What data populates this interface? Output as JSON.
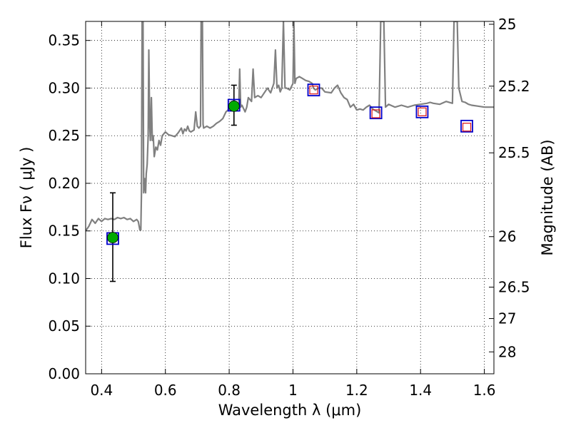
{
  "chart_data": {
    "type": "scatter",
    "xlabel": "Wavelength  λ (μm)",
    "ylabel": "Flux  Fν  ( μJy )",
    "y2label": "Magnitude (AB)",
    "xlim": [
      0.35,
      1.63
    ],
    "ylim": [
      0.0,
      0.37
    ],
    "grid": true,
    "x_ticks": [
      0.4,
      0.6,
      0.8,
      1.0,
      1.2,
      1.4,
      1.6
    ],
    "x_tick_labels": [
      "0.4",
      "0.6",
      "0.8",
      "1",
      "1.2",
      "1.4",
      "1.6"
    ],
    "y_ticks": [
      0.0,
      0.05,
      0.1,
      0.15,
      0.2,
      0.25,
      0.3,
      0.35
    ],
    "y_tick_labels": [
      "0.00",
      "0.05",
      "0.10",
      "0.15",
      "0.20",
      "0.25",
      "0.30",
      "0.35"
    ],
    "y2_ticks": [
      {
        "label": "25",
        "flux": 0.367
      },
      {
        "label": "25.2",
        "flux": 0.302
      },
      {
        "label": "25.5",
        "flux": 0.232
      },
      {
        "label": "26",
        "flux": 0.144
      },
      {
        "label": "26.5",
        "flux": 0.091
      },
      {
        "label": "27",
        "flux": 0.058
      },
      {
        "label": "28",
        "flux": 0.023
      }
    ],
    "series": [
      {
        "kind": "sed-model-line",
        "color": "#808080",
        "points": [
          [
            0.35,
            0.15
          ],
          [
            0.36,
            0.155
          ],
          [
            0.37,
            0.162
          ],
          [
            0.38,
            0.158
          ],
          [
            0.39,
            0.163
          ],
          [
            0.4,
            0.16
          ],
          [
            0.41,
            0.163
          ],
          [
            0.42,
            0.162
          ],
          [
            0.43,
            0.163
          ],
          [
            0.44,
            0.162
          ],
          [
            0.45,
            0.164
          ],
          [
            0.46,
            0.163
          ],
          [
            0.47,
            0.164
          ],
          [
            0.48,
            0.162
          ],
          [
            0.49,
            0.163
          ],
          [
            0.5,
            0.16
          ],
          [
            0.51,
            0.162
          ],
          [
            0.515,
            0.16
          ],
          [
            0.52,
            0.151
          ],
          [
            0.523,
            0.151
          ],
          [
            0.525,
            0.19
          ],
          [
            0.527,
            0.37
          ],
          [
            0.53,
            0.37
          ],
          [
            0.532,
            0.19
          ],
          [
            0.535,
            0.205
          ],
          [
            0.538,
            0.19
          ],
          [
            0.54,
            0.21
          ],
          [
            0.543,
            0.22
          ],
          [
            0.546,
            0.25
          ],
          [
            0.548,
            0.34
          ],
          [
            0.551,
            0.26
          ],
          [
            0.553,
            0.245
          ],
          [
            0.556,
            0.29
          ],
          [
            0.559,
            0.245
          ],
          [
            0.562,
            0.25
          ],
          [
            0.565,
            0.228
          ],
          [
            0.57,
            0.238
          ],
          [
            0.575,
            0.235
          ],
          [
            0.58,
            0.245
          ],
          [
            0.585,
            0.24
          ],
          [
            0.59,
            0.25
          ],
          [
            0.6,
            0.254
          ],
          [
            0.61,
            0.251
          ],
          [
            0.62,
            0.25
          ],
          [
            0.63,
            0.249
          ],
          [
            0.64,
            0.253
          ],
          [
            0.65,
            0.258
          ],
          [
            0.655,
            0.252
          ],
          [
            0.66,
            0.257
          ],
          [
            0.665,
            0.255
          ],
          [
            0.67,
            0.26
          ],
          [
            0.675,
            0.255
          ],
          [
            0.68,
            0.254
          ],
          [
            0.69,
            0.256
          ],
          [
            0.695,
            0.275
          ],
          [
            0.7,
            0.26
          ],
          [
            0.705,
            0.258
          ],
          [
            0.71,
            0.26
          ],
          [
            0.712,
            0.37
          ],
          [
            0.716,
            0.37
          ],
          [
            0.718,
            0.262
          ],
          [
            0.72,
            0.258
          ],
          [
            0.73,
            0.26
          ],
          [
            0.74,
            0.258
          ],
          [
            0.75,
            0.26
          ],
          [
            0.76,
            0.263
          ],
          [
            0.77,
            0.265
          ],
          [
            0.78,
            0.268
          ],
          [
            0.79,
            0.275
          ],
          [
            0.8,
            0.278
          ],
          [
            0.81,
            0.28
          ],
          [
            0.82,
            0.276
          ],
          [
            0.83,
            0.28
          ],
          [
            0.833,
            0.32
          ],
          [
            0.836,
            0.28
          ],
          [
            0.84,
            0.282
          ],
          [
            0.85,
            0.275
          ],
          [
            0.855,
            0.28
          ],
          [
            0.86,
            0.29
          ],
          [
            0.87,
            0.286
          ],
          [
            0.875,
            0.32
          ],
          [
            0.88,
            0.29
          ],
          [
            0.89,
            0.292
          ],
          [
            0.9,
            0.29
          ],
          [
            0.92,
            0.3
          ],
          [
            0.93,
            0.295
          ],
          [
            0.94,
            0.305
          ],
          [
            0.945,
            0.34
          ],
          [
            0.95,
            0.3
          ],
          [
            0.955,
            0.303
          ],
          [
            0.96,
            0.296
          ],
          [
            0.965,
            0.3
          ],
          [
            0.97,
            0.37
          ],
          [
            0.975,
            0.3
          ],
          [
            0.98,
            0.3
          ],
          [
            0.99,
            0.298
          ],
          [
            1.0,
            0.305
          ],
          [
            1.003,
            0.37
          ],
          [
            1.006,
            0.305
          ],
          [
            1.01,
            0.31
          ],
          [
            1.02,
            0.312
          ],
          [
            1.03,
            0.31
          ],
          [
            1.04,
            0.308
          ],
          [
            1.05,
            0.307
          ],
          [
            1.06,
            0.305
          ],
          [
            1.064,
            0.3
          ],
          [
            1.07,
            0.298
          ],
          [
            1.08,
            0.3
          ],
          [
            1.09,
            0.3
          ],
          [
            1.1,
            0.296
          ],
          [
            1.12,
            0.295
          ],
          [
            1.13,
            0.3
          ],
          [
            1.14,
            0.303
          ],
          [
            1.15,
            0.295
          ],
          [
            1.16,
            0.29
          ],
          [
            1.17,
            0.288
          ],
          [
            1.18,
            0.28
          ],
          [
            1.19,
            0.283
          ],
          [
            1.2,
            0.277
          ],
          [
            1.21,
            0.278
          ],
          [
            1.22,
            0.277
          ],
          [
            1.23,
            0.28
          ],
          [
            1.24,
            0.282
          ],
          [
            1.25,
            0.278
          ],
          [
            1.26,
            0.276
          ],
          [
            1.27,
            0.274
          ],
          [
            1.275,
            0.37
          ],
          [
            1.285,
            0.37
          ],
          [
            1.29,
            0.28
          ],
          [
            1.3,
            0.283
          ],
          [
            1.32,
            0.28
          ],
          [
            1.34,
            0.282
          ],
          [
            1.36,
            0.28
          ],
          [
            1.38,
            0.282
          ],
          [
            1.4,
            0.283
          ],
          [
            1.42,
            0.284
          ],
          [
            1.43,
            0.285
          ],
          [
            1.44,
            0.284
          ],
          [
            1.46,
            0.283
          ],
          [
            1.48,
            0.286
          ],
          [
            1.5,
            0.284
          ],
          [
            1.505,
            0.37
          ],
          [
            1.515,
            0.37
          ],
          [
            1.52,
            0.3
          ],
          [
            1.53,
            0.286
          ],
          [
            1.54,
            0.285
          ],
          [
            1.55,
            0.283
          ],
          [
            1.56,
            0.282
          ],
          [
            1.58,
            0.281
          ],
          [
            1.6,
            0.28
          ],
          [
            1.63,
            0.28
          ]
        ]
      },
      {
        "kind": "observed-photometry",
        "marker": "green-circle",
        "color": "#00aa00",
        "points": [
          {
            "x": 0.435,
            "y": 0.143,
            "yerr_low": 0.097,
            "yerr_high": 0.19
          },
          {
            "x": 0.815,
            "y": 0.281,
            "yerr_low": 0.261,
            "yerr_high": 0.303
          }
        ]
      },
      {
        "kind": "model-photometry",
        "marker": "blue-square",
        "color": "#0000cc",
        "points": [
          [
            0.435,
            0.142
          ],
          [
            0.815,
            0.282
          ],
          [
            1.065,
            0.298
          ],
          [
            1.26,
            0.274
          ],
          [
            1.405,
            0.275
          ],
          [
            1.545,
            0.26
          ]
        ]
      },
      {
        "kind": "upper-limits",
        "marker": "red-open-square",
        "color": "#dd2222",
        "points": [
          [
            1.065,
            0.298
          ],
          [
            1.26,
            0.273
          ],
          [
            1.405,
            0.275
          ],
          [
            1.545,
            0.259
          ]
        ]
      }
    ]
  }
}
